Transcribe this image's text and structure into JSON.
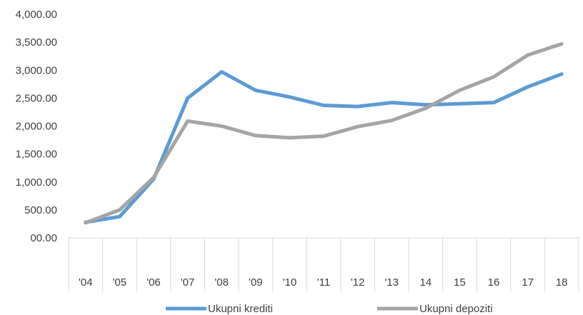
{
  "chart_data": {
    "type": "line",
    "categories": [
      "'04",
      "'05",
      "'06",
      "'07",
      "'08",
      "'09",
      "'10",
      "'11",
      "'12",
      "'13",
      "14",
      "15",
      "16",
      "17",
      "18"
    ],
    "series": [
      {
        "name": "Ukupni krediti",
        "color": "#5b9bd5",
        "values": [
          280,
          380,
          1050,
          2500,
          2970,
          2640,
          2520,
          2370,
          2350,
          2420,
          2380,
          2400,
          2420,
          2700,
          2930
        ]
      },
      {
        "name": "Ukupni depoziti",
        "color": "#a5a5a5",
        "values": [
          270,
          500,
          1080,
          2090,
          2000,
          1830,
          1790,
          1820,
          1990,
          2100,
          2320,
          2640,
          2880,
          3270,
          3470
        ]
      }
    ],
    "y_ticks": [
      "00.00",
      "500.00",
      "1,000.00",
      "1,500.00",
      "2,000.00",
      "2,500.00",
      "3,000.00",
      "3,500.00",
      "4,000.00"
    ],
    "ylim": [
      0,
      4000
    ],
    "title": "",
    "xlabel": "",
    "ylabel": "",
    "grid": false,
    "legend_position": "bottom"
  }
}
